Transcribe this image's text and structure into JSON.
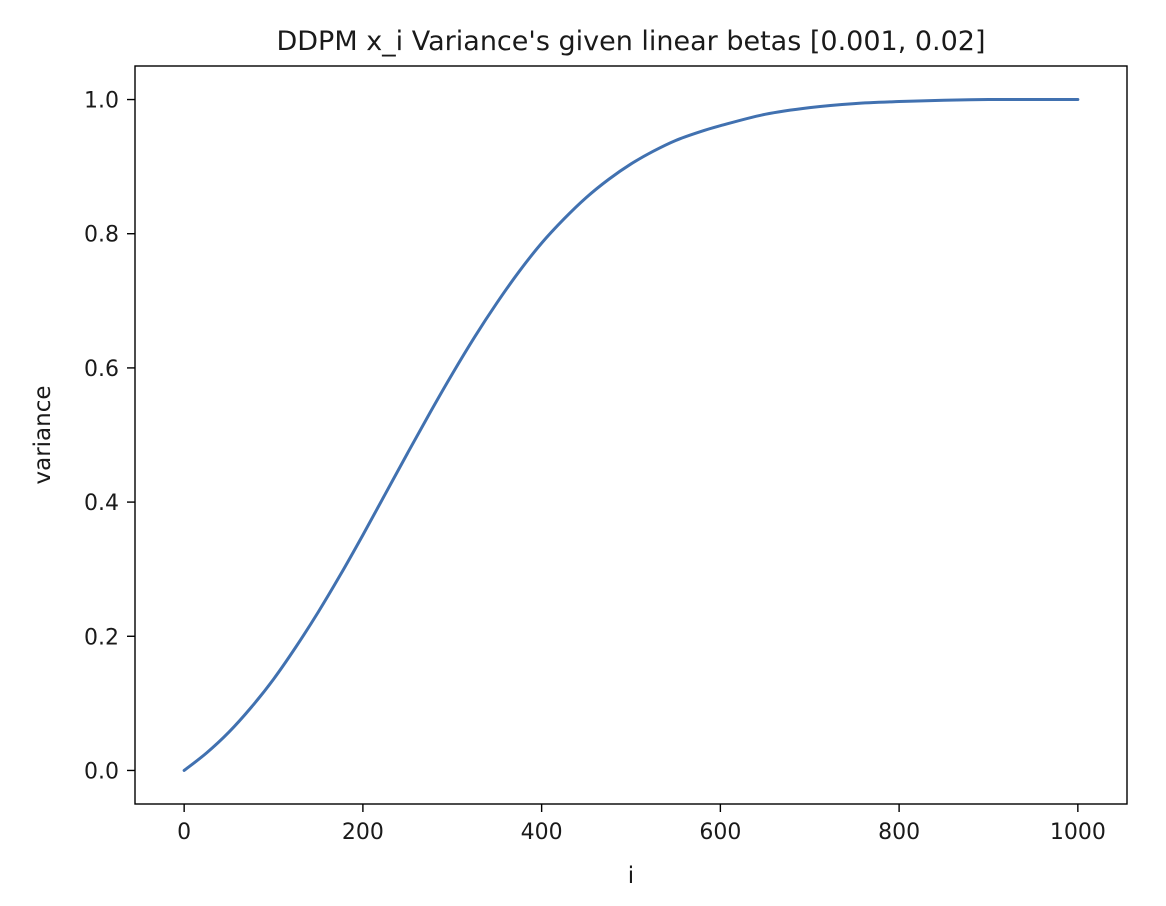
{
  "chart_data": {
    "type": "line",
    "title": "DDPM x_i Variance's given linear betas [0.001, 0.02]",
    "xlabel": "i",
    "ylabel": "variance",
    "xlim": [
      -55,
      1055
    ],
    "ylim": [
      -0.05,
      1.05
    ],
    "xticks": [
      0,
      200,
      400,
      600,
      800,
      1000
    ],
    "xtick_labels": [
      "0",
      "200",
      "400",
      "600",
      "800",
      "1000"
    ],
    "yticks": [
      0.0,
      0.2,
      0.4,
      0.6,
      0.8,
      1.0
    ],
    "ytick_labels": [
      "0.0",
      "0.2",
      "0.4",
      "0.6",
      "0.8",
      "1.0"
    ],
    "grid": false,
    "series": [
      {
        "color": "#4171b0",
        "x": [
          0,
          25,
          50,
          75,
          100,
          125,
          150,
          175,
          200,
          225,
          250,
          275,
          300,
          325,
          350,
          375,
          400,
          425,
          450,
          475,
          500,
          525,
          550,
          575,
          600,
          650,
          700,
          750,
          800,
          850,
          900,
          950,
          1000
        ],
        "y": [
          0.0,
          0.026,
          0.057,
          0.094,
          0.136,
          0.184,
          0.236,
          0.292,
          0.351,
          0.412,
          0.473,
          0.533,
          0.591,
          0.646,
          0.697,
          0.744,
          0.786,
          0.822,
          0.854,
          0.881,
          0.904,
          0.923,
          0.939,
          0.951,
          0.961,
          0.978,
          0.988,
          0.994,
          0.997,
          0.999,
          1.0,
          1.0,
          1.0
        ]
      }
    ]
  }
}
